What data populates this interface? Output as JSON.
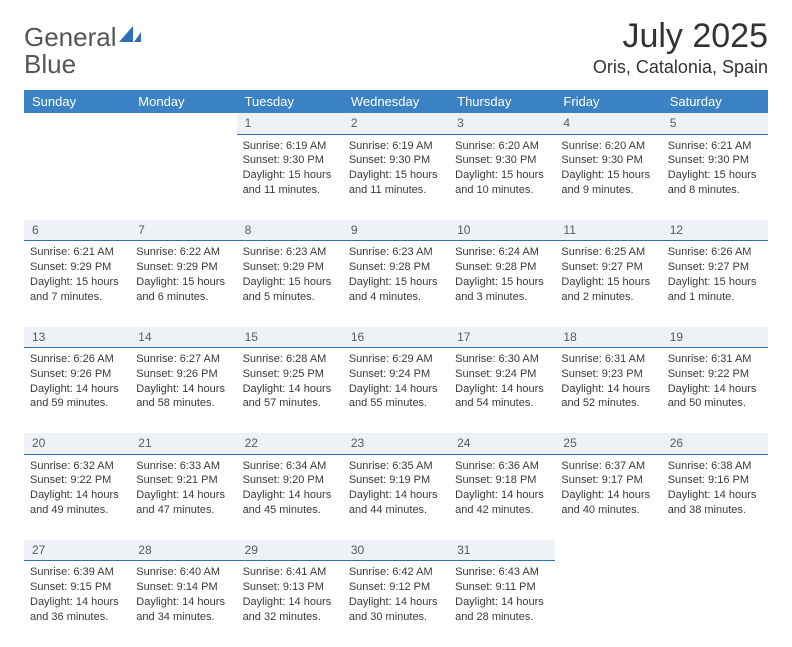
{
  "logo": {
    "word1": "General",
    "word2": "Blue"
  },
  "title": "July 2025",
  "location": "Oris, Catalonia, Spain",
  "colors": {
    "header_bg": "#3b82c4",
    "header_text": "#ffffff",
    "daynum_bg": "#eef2f6",
    "daynum_border": "#2f6fb3",
    "body_text": "#3a3a3a",
    "logo_gray": "#555555",
    "logo_blue": "#2f6fb3"
  },
  "dayHeaders": [
    "Sunday",
    "Monday",
    "Tuesday",
    "Wednesday",
    "Thursday",
    "Friday",
    "Saturday"
  ],
  "weeks": [
    [
      null,
      null,
      {
        "n": "1",
        "sunrise": "Sunrise: 6:19 AM",
        "sunset": "Sunset: 9:30 PM",
        "d1": "Daylight: 15 hours",
        "d2": "and 11 minutes."
      },
      {
        "n": "2",
        "sunrise": "Sunrise: 6:19 AM",
        "sunset": "Sunset: 9:30 PM",
        "d1": "Daylight: 15 hours",
        "d2": "and 11 minutes."
      },
      {
        "n": "3",
        "sunrise": "Sunrise: 6:20 AM",
        "sunset": "Sunset: 9:30 PM",
        "d1": "Daylight: 15 hours",
        "d2": "and 10 minutes."
      },
      {
        "n": "4",
        "sunrise": "Sunrise: 6:20 AM",
        "sunset": "Sunset: 9:30 PM",
        "d1": "Daylight: 15 hours",
        "d2": "and 9 minutes."
      },
      {
        "n": "5",
        "sunrise": "Sunrise: 6:21 AM",
        "sunset": "Sunset: 9:30 PM",
        "d1": "Daylight: 15 hours",
        "d2": "and 8 minutes."
      }
    ],
    [
      {
        "n": "6",
        "sunrise": "Sunrise: 6:21 AM",
        "sunset": "Sunset: 9:29 PM",
        "d1": "Daylight: 15 hours",
        "d2": "and 7 minutes."
      },
      {
        "n": "7",
        "sunrise": "Sunrise: 6:22 AM",
        "sunset": "Sunset: 9:29 PM",
        "d1": "Daylight: 15 hours",
        "d2": "and 6 minutes."
      },
      {
        "n": "8",
        "sunrise": "Sunrise: 6:23 AM",
        "sunset": "Sunset: 9:29 PM",
        "d1": "Daylight: 15 hours",
        "d2": "and 5 minutes."
      },
      {
        "n": "9",
        "sunrise": "Sunrise: 6:23 AM",
        "sunset": "Sunset: 9:28 PM",
        "d1": "Daylight: 15 hours",
        "d2": "and 4 minutes."
      },
      {
        "n": "10",
        "sunrise": "Sunrise: 6:24 AM",
        "sunset": "Sunset: 9:28 PM",
        "d1": "Daylight: 15 hours",
        "d2": "and 3 minutes."
      },
      {
        "n": "11",
        "sunrise": "Sunrise: 6:25 AM",
        "sunset": "Sunset: 9:27 PM",
        "d1": "Daylight: 15 hours",
        "d2": "and 2 minutes."
      },
      {
        "n": "12",
        "sunrise": "Sunrise: 6:26 AM",
        "sunset": "Sunset: 9:27 PM",
        "d1": "Daylight: 15 hours",
        "d2": "and 1 minute."
      }
    ],
    [
      {
        "n": "13",
        "sunrise": "Sunrise: 6:26 AM",
        "sunset": "Sunset: 9:26 PM",
        "d1": "Daylight: 14 hours",
        "d2": "and 59 minutes."
      },
      {
        "n": "14",
        "sunrise": "Sunrise: 6:27 AM",
        "sunset": "Sunset: 9:26 PM",
        "d1": "Daylight: 14 hours",
        "d2": "and 58 minutes."
      },
      {
        "n": "15",
        "sunrise": "Sunrise: 6:28 AM",
        "sunset": "Sunset: 9:25 PM",
        "d1": "Daylight: 14 hours",
        "d2": "and 57 minutes."
      },
      {
        "n": "16",
        "sunrise": "Sunrise: 6:29 AM",
        "sunset": "Sunset: 9:24 PM",
        "d1": "Daylight: 14 hours",
        "d2": "and 55 minutes."
      },
      {
        "n": "17",
        "sunrise": "Sunrise: 6:30 AM",
        "sunset": "Sunset: 9:24 PM",
        "d1": "Daylight: 14 hours",
        "d2": "and 54 minutes."
      },
      {
        "n": "18",
        "sunrise": "Sunrise: 6:31 AM",
        "sunset": "Sunset: 9:23 PM",
        "d1": "Daylight: 14 hours",
        "d2": "and 52 minutes."
      },
      {
        "n": "19",
        "sunrise": "Sunrise: 6:31 AM",
        "sunset": "Sunset: 9:22 PM",
        "d1": "Daylight: 14 hours",
        "d2": "and 50 minutes."
      }
    ],
    [
      {
        "n": "20",
        "sunrise": "Sunrise: 6:32 AM",
        "sunset": "Sunset: 9:22 PM",
        "d1": "Daylight: 14 hours",
        "d2": "and 49 minutes."
      },
      {
        "n": "21",
        "sunrise": "Sunrise: 6:33 AM",
        "sunset": "Sunset: 9:21 PM",
        "d1": "Daylight: 14 hours",
        "d2": "and 47 minutes."
      },
      {
        "n": "22",
        "sunrise": "Sunrise: 6:34 AM",
        "sunset": "Sunset: 9:20 PM",
        "d1": "Daylight: 14 hours",
        "d2": "and 45 minutes."
      },
      {
        "n": "23",
        "sunrise": "Sunrise: 6:35 AM",
        "sunset": "Sunset: 9:19 PM",
        "d1": "Daylight: 14 hours",
        "d2": "and 44 minutes."
      },
      {
        "n": "24",
        "sunrise": "Sunrise: 6:36 AM",
        "sunset": "Sunset: 9:18 PM",
        "d1": "Daylight: 14 hours",
        "d2": "and 42 minutes."
      },
      {
        "n": "25",
        "sunrise": "Sunrise: 6:37 AM",
        "sunset": "Sunset: 9:17 PM",
        "d1": "Daylight: 14 hours",
        "d2": "and 40 minutes."
      },
      {
        "n": "26",
        "sunrise": "Sunrise: 6:38 AM",
        "sunset": "Sunset: 9:16 PM",
        "d1": "Daylight: 14 hours",
        "d2": "and 38 minutes."
      }
    ],
    [
      {
        "n": "27",
        "sunrise": "Sunrise: 6:39 AM",
        "sunset": "Sunset: 9:15 PM",
        "d1": "Daylight: 14 hours",
        "d2": "and 36 minutes."
      },
      {
        "n": "28",
        "sunrise": "Sunrise: 6:40 AM",
        "sunset": "Sunset: 9:14 PM",
        "d1": "Daylight: 14 hours",
        "d2": "and 34 minutes."
      },
      {
        "n": "29",
        "sunrise": "Sunrise: 6:41 AM",
        "sunset": "Sunset: 9:13 PM",
        "d1": "Daylight: 14 hours",
        "d2": "and 32 minutes."
      },
      {
        "n": "30",
        "sunrise": "Sunrise: 6:42 AM",
        "sunset": "Sunset: 9:12 PM",
        "d1": "Daylight: 14 hours",
        "d2": "and 30 minutes."
      },
      {
        "n": "31",
        "sunrise": "Sunrise: 6:43 AM",
        "sunset": "Sunset: 9:11 PM",
        "d1": "Daylight: 14 hours",
        "d2": "and 28 minutes."
      },
      null,
      null
    ]
  ]
}
